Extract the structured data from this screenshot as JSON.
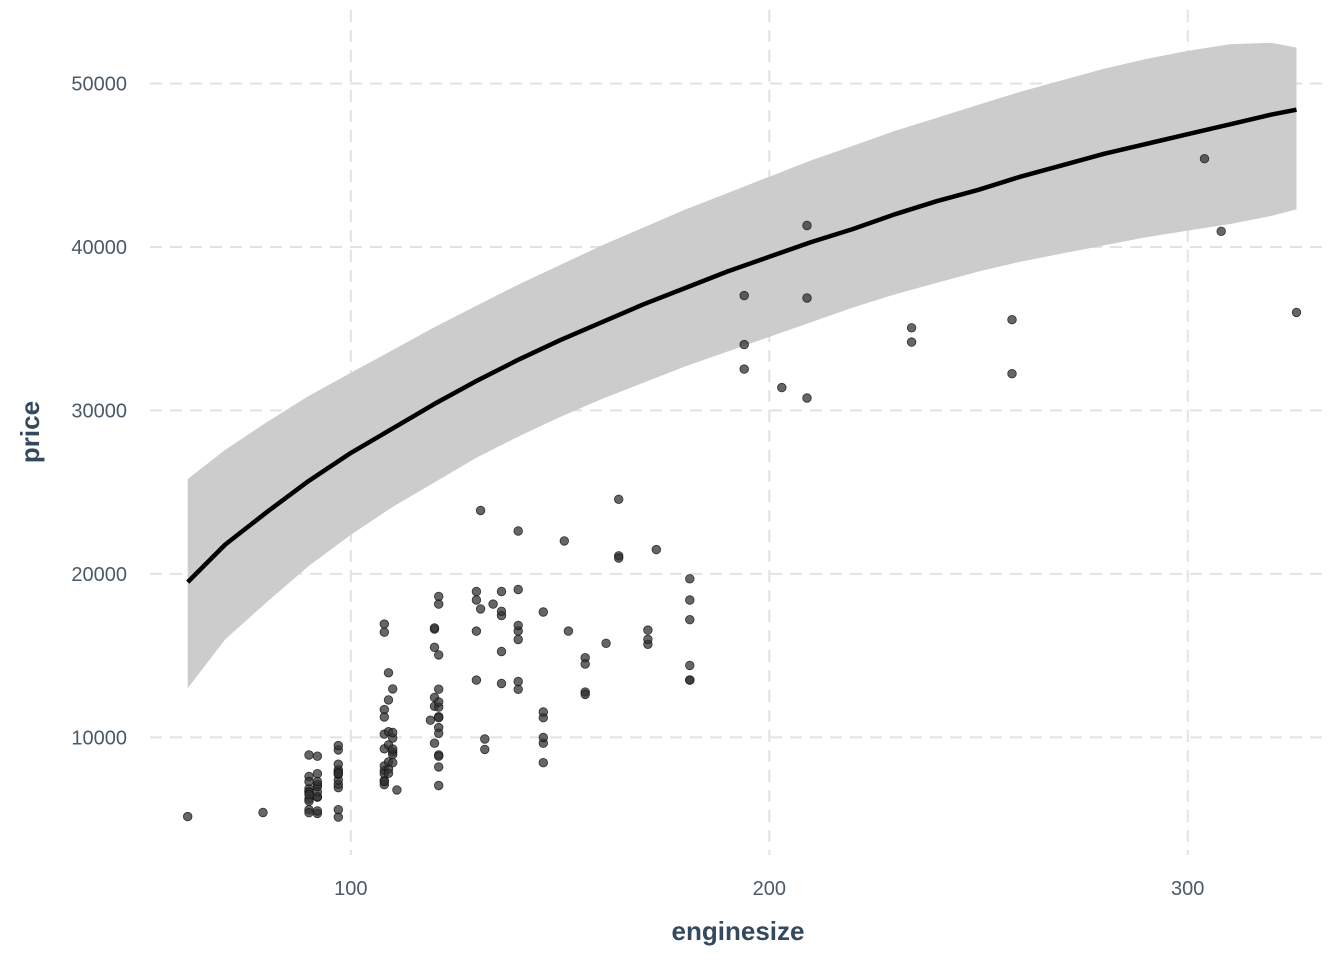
{
  "chart_data": {
    "type": "scatter",
    "title": "",
    "xlabel": "enginesize",
    "ylabel": "price",
    "xlim": [
      52,
      334
    ],
    "ylim": [
      2800,
      54500
    ],
    "x_ticks": [
      100,
      200,
      300
    ],
    "y_ticks": [
      10000,
      20000,
      30000,
      40000,
      50000
    ],
    "grid": true,
    "legend": "none",
    "colors": {
      "points": "#333333",
      "line": "#000000",
      "ribbon": "#cccccc",
      "grid": "#e2e2e2"
    },
    "series": [
      {
        "type": "scatter",
        "points": [
          [
            61,
            5151
          ],
          [
            79,
            5399
          ],
          [
            90,
            5572
          ],
          [
            90,
            5389
          ],
          [
            90,
            6229
          ],
          [
            90,
            6692
          ],
          [
            90,
            7609
          ],
          [
            90,
            6855
          ],
          [
            90,
            8916
          ],
          [
            90,
            7295
          ],
          [
            90,
            6649
          ],
          [
            90,
            6095
          ],
          [
            90,
            6488
          ],
          [
            92,
            5348
          ],
          [
            92,
            6338
          ],
          [
            92,
            6377
          ],
          [
            92,
            6669
          ],
          [
            92,
            6989
          ],
          [
            92,
            7126
          ],
          [
            92,
            7775
          ],
          [
            92,
            7295
          ],
          [
            92,
            8845
          ],
          [
            92,
            5499
          ],
          [
            97,
            5118
          ],
          [
            97,
            5572
          ],
          [
            97,
            6918
          ],
          [
            97,
            7129
          ],
          [
            97,
            7395
          ],
          [
            97,
            7738
          ],
          [
            97,
            7898
          ],
          [
            97,
            8013
          ],
          [
            97,
            8358
          ],
          [
            97,
            9233
          ],
          [
            97,
            9495
          ],
          [
            97,
            7788
          ],
          [
            108,
            7957
          ],
          [
            108,
            7349
          ],
          [
            108,
            7099
          ],
          [
            108,
            7299
          ],
          [
            108,
            8249
          ],
          [
            108,
            10198
          ],
          [
            108,
            11694
          ],
          [
            108,
            11245
          ],
          [
            108,
            16925
          ],
          [
            108,
            16430
          ],
          [
            108,
            9298
          ],
          [
            108,
            7775
          ],
          [
            109,
            12290
          ],
          [
            109,
            8058
          ],
          [
            109,
            7799
          ],
          [
            109,
            8495
          ],
          [
            109,
            10345
          ],
          [
            109,
            13950
          ],
          [
            109,
            9538
          ],
          [
            110,
            9095
          ],
          [
            110,
            9960
          ],
          [
            110,
            8948
          ],
          [
            110,
            12964
          ],
          [
            110,
            10295
          ],
          [
            110,
            9279
          ],
          [
            110,
            8449
          ],
          [
            111,
            6785
          ],
          [
            119,
            11048
          ],
          [
            120,
            12440
          ],
          [
            120,
            11900
          ],
          [
            120,
            16630
          ],
          [
            120,
            16695
          ],
          [
            120,
            9639
          ],
          [
            120,
            15510
          ],
          [
            121,
            8921
          ],
          [
            121,
            12945
          ],
          [
            121,
            10595
          ],
          [
            121,
            11259
          ],
          [
            121,
            15040
          ],
          [
            121,
            18620
          ],
          [
            121,
            18150
          ],
          [
            121,
            8845
          ],
          [
            121,
            8189
          ],
          [
            121,
            7053
          ],
          [
            121,
            10245
          ],
          [
            121,
            11850
          ],
          [
            121,
            11199
          ],
          [
            121,
            12170
          ],
          [
            130,
            13499
          ],
          [
            130,
            16500
          ],
          [
            130,
            18920
          ],
          [
            130,
            18399
          ],
          [
            131,
            17859
          ],
          [
            131,
            23875
          ],
          [
            132,
            9258
          ],
          [
            132,
            9895
          ],
          [
            134,
            18150
          ],
          [
            136,
            17450
          ],
          [
            136,
            15250
          ],
          [
            136,
            17710
          ],
          [
            136,
            18920
          ],
          [
            136,
            13295
          ],
          [
            140,
            16503
          ],
          [
            140,
            22625
          ],
          [
            140,
            16845
          ],
          [
            140,
            12940
          ],
          [
            140,
            13415
          ],
          [
            140,
            15985
          ],
          [
            140,
            19045
          ],
          [
            146,
            8449
          ],
          [
            146,
            9639
          ],
          [
            146,
            9989
          ],
          [
            146,
            11199
          ],
          [
            146,
            11549
          ],
          [
            146,
            17669
          ],
          [
            151,
            22018
          ],
          [
            152,
            16500
          ],
          [
            156,
            12764
          ],
          [
            156,
            12629
          ],
          [
            156,
            14869
          ],
          [
            156,
            14489
          ],
          [
            161,
            15750
          ],
          [
            164,
            21105
          ],
          [
            164,
            24565
          ],
          [
            164,
            20970
          ],
          [
            171,
            15690
          ],
          [
            171,
            15998
          ],
          [
            171,
            16558
          ],
          [
            173,
            21485
          ],
          [
            181,
            13499
          ],
          [
            181,
            14399
          ],
          [
            181,
            17199
          ],
          [
            181,
            18399
          ],
          [
            181,
            19699
          ],
          [
            181,
            13499
          ],
          [
            194,
            32528
          ],
          [
            194,
            34028
          ],
          [
            194,
            37028
          ],
          [
            203,
            31400
          ],
          [
            209,
            30760
          ],
          [
            209,
            41315
          ],
          [
            209,
            36880
          ],
          [
            234,
            34184
          ],
          [
            234,
            35056
          ],
          [
            258,
            32250
          ],
          [
            258,
            35550
          ],
          [
            304,
            45400
          ],
          [
            308,
            40960
          ],
          [
            326,
            36000
          ]
        ]
      },
      {
        "type": "line",
        "x": [
          61,
          70,
          80,
          90,
          100,
          110,
          120,
          130,
          140,
          150,
          160,
          170,
          180,
          190,
          200,
          210,
          220,
          230,
          240,
          250,
          260,
          270,
          280,
          290,
          300,
          310,
          320,
          326
        ],
        "y": [
          19500,
          21800,
          23800,
          25700,
          27400,
          28900,
          30400,
          31800,
          33100,
          34300,
          35400,
          36500,
          37500,
          38500,
          39400,
          40300,
          41100,
          42000,
          42800,
          43500,
          44300,
          45000,
          45700,
          46300,
          46900,
          47500,
          48100,
          48400
        ],
        "lower": [
          13000,
          16000,
          18300,
          20500,
          22400,
          24100,
          25600,
          27100,
          28400,
          29600,
          30700,
          31700,
          32700,
          33600,
          34500,
          35400,
          36300,
          37100,
          37800,
          38500,
          39100,
          39600,
          40100,
          40600,
          41000,
          41400,
          41900,
          42300
        ],
        "upper": [
          25800,
          27600,
          29300,
          30900,
          32300,
          33700,
          35100,
          36400,
          37700,
          38900,
          40100,
          41200,
          42300,
          43300,
          44300,
          45300,
          46200,
          47100,
          47900,
          48700,
          49500,
          50200,
          50900,
          51500,
          52000,
          52400,
          52500,
          52200
        ]
      }
    ]
  }
}
